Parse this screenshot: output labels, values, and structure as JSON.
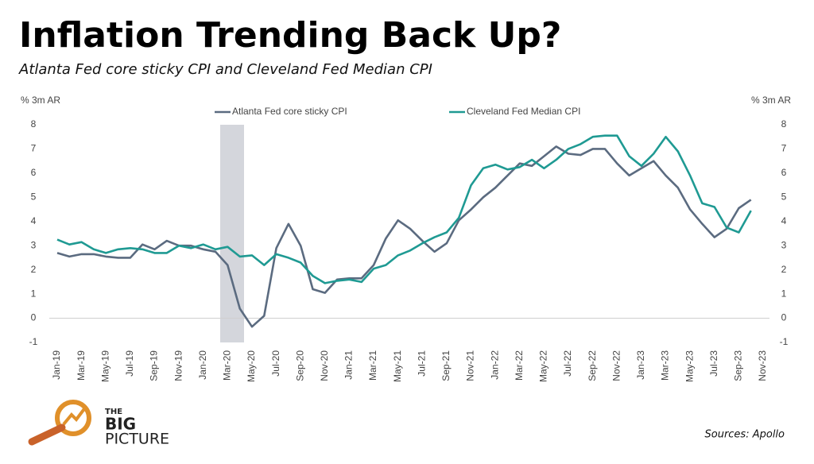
{
  "chart_data": {
    "type": "line",
    "title": "Inflation Trending Back Up?",
    "subtitle": "Atlanta Fed core sticky CPI and Cleveland Fed Median CPI",
    "y_label": "% 3m AR",
    "y2_label": "% 3m AR",
    "source": "Sources: Apollo",
    "categories": [
      "Jan-19",
      null,
      "Mar-19",
      null,
      "May-19",
      null,
      "Jul-19",
      null,
      "Sep-19",
      null,
      "Nov-19",
      null,
      "Jan-20",
      null,
      "Mar-20",
      null,
      "May-20",
      null,
      "Jul-20",
      null,
      "Sep-20",
      null,
      "Nov-20",
      null,
      "Jan-21",
      null,
      "Mar-21",
      null,
      "May-21",
      null,
      "Jul-21",
      null,
      "Sep-21",
      null,
      "Nov-21",
      null,
      "Jan-22",
      null,
      "Mar-22",
      null,
      "May-22",
      null,
      "Jul-22",
      null,
      "Sep-22",
      null,
      "Nov-22",
      null,
      "Jan-23",
      null,
      "Mar-23",
      null,
      "May-23",
      null,
      "Jul-23",
      null,
      "Sep-23",
      null,
      "Nov-23"
    ],
    "series": [
      {
        "name": "Atlanta Fed core sticky CPI",
        "color": "#5b6b80",
        "values": [
          2.7,
          2.55,
          2.65,
          2.65,
          2.55,
          2.5,
          2.5,
          3.05,
          2.85,
          3.2,
          3.0,
          3.0,
          2.85,
          2.75,
          2.2,
          0.4,
          -0.35,
          0.1,
          2.9,
          3.9,
          3.0,
          1.2,
          1.05,
          1.6,
          1.65,
          1.65,
          2.2,
          3.3,
          4.05,
          3.7,
          3.2,
          2.75,
          3.1,
          4.05,
          4.5,
          5.0,
          5.4,
          5.9,
          6.4,
          6.3,
          6.7,
          7.1,
          6.8,
          6.75,
          7.0,
          7.0,
          6.4,
          5.9,
          6.2,
          6.5,
          5.9,
          5.4,
          4.5,
          3.9,
          3.35,
          3.7,
          4.55,
          4.9,
          null
        ]
      },
      {
        "name": "Cleveland Fed Median CPI",
        "color": "#1f9a93",
        "values": [
          3.25,
          3.05,
          3.15,
          2.85,
          2.7,
          2.85,
          2.9,
          2.85,
          2.7,
          2.7,
          3.0,
          2.9,
          3.05,
          2.85,
          2.95,
          2.55,
          2.6,
          2.2,
          2.65,
          2.5,
          2.3,
          1.75,
          1.45,
          1.55,
          1.6,
          1.5,
          2.05,
          2.2,
          2.6,
          2.8,
          3.1,
          3.35,
          3.55,
          4.15,
          5.5,
          6.2,
          6.35,
          6.15,
          6.25,
          6.55,
          6.2,
          6.55,
          7.0,
          7.2,
          7.5,
          7.55,
          7.55,
          6.7,
          6.3,
          6.8,
          7.5,
          6.9,
          5.9,
          4.75,
          4.6,
          3.75,
          3.55,
          4.45,
          null
        ]
      }
    ],
    "ylim": [
      -1,
      8
    ],
    "yticks": [
      -1,
      0,
      1,
      2,
      3,
      4,
      5,
      6,
      7,
      8
    ],
    "y2lim": [
      -1,
      8
    ],
    "y2ticks": [
      -1,
      0,
      1,
      2,
      3,
      4,
      5,
      6,
      7,
      8
    ],
    "grid": false
  },
  "branding": {
    "line1": "THE",
    "line2": "BIG",
    "line3": "PICTURE"
  }
}
